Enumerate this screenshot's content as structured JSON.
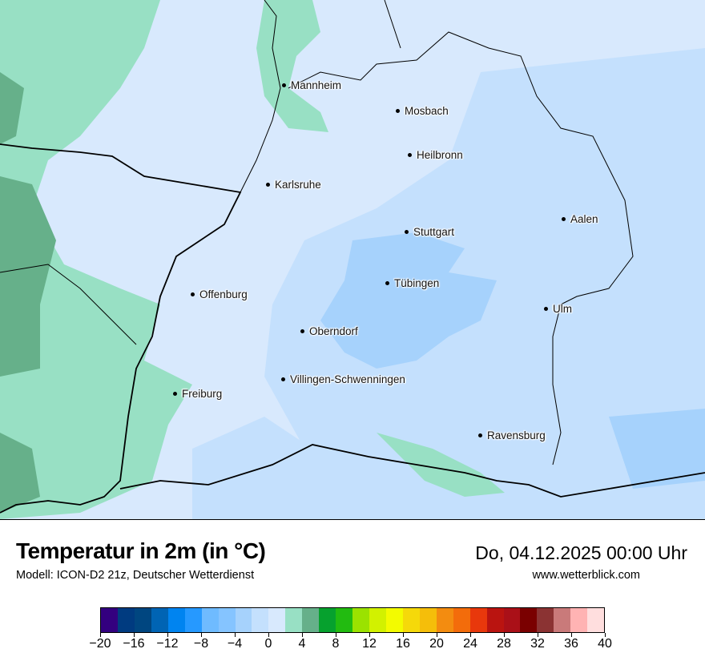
{
  "map": {
    "cities": [
      {
        "name": "Mannheim"
      },
      {
        "name": "Mosbach"
      },
      {
        "name": "Heilbronn"
      },
      {
        "name": "Karlsruhe"
      },
      {
        "name": "Aalen"
      },
      {
        "name": "Stuttgart"
      },
      {
        "name": "Tübingen"
      },
      {
        "name": "Offenburg"
      },
      {
        "name": "Ulm"
      },
      {
        "name": "Oberndorf"
      },
      {
        "name": "Villingen-Schwenningen"
      },
      {
        "name": "Freiburg"
      },
      {
        "name": "Ravensburg"
      }
    ],
    "colors": {
      "background": "#d8e9fd",
      "cool": "#c4e0fd",
      "colder": "#a6d2fc",
      "green_light": "#98e0c4",
      "green_dark": "#66b08a"
    }
  },
  "footer": {
    "title": "Temperatur in 2m (in °C)",
    "model": "Modell: ICON-D2 21z, Deutscher Wetterdienst",
    "datetime": "Do, 04.12.2025 00:00 Uhr",
    "website": "www.wetterblick.com"
  },
  "legend": {
    "min": -20,
    "max": 40,
    "step": 2,
    "tick_labels": [
      "−20",
      "−16",
      "−12",
      "−8",
      "−4",
      "0",
      "4",
      "8",
      "12",
      "16",
      "20",
      "24",
      "28",
      "32",
      "36",
      "40"
    ],
    "colors": [
      "#33007f",
      "#003b80",
      "#004680",
      "#0064b4",
      "#0084f0",
      "#2699ff",
      "#6fbbff",
      "#85c4ff",
      "#a6d2fc",
      "#c4e0fd",
      "#d8e9fd",
      "#98e0c4",
      "#66b08a",
      "#06a12e",
      "#22bb10",
      "#9be200",
      "#d2f100",
      "#f3fb00",
      "#f5d90a",
      "#f5be0a",
      "#f38c10",
      "#f36c0b",
      "#e8380c",
      "#ba1410",
      "#aa1018",
      "#7a0000",
      "#8b3333",
      "#c97a7a",
      "#ffb3b3",
      "#ffdede"
    ]
  }
}
